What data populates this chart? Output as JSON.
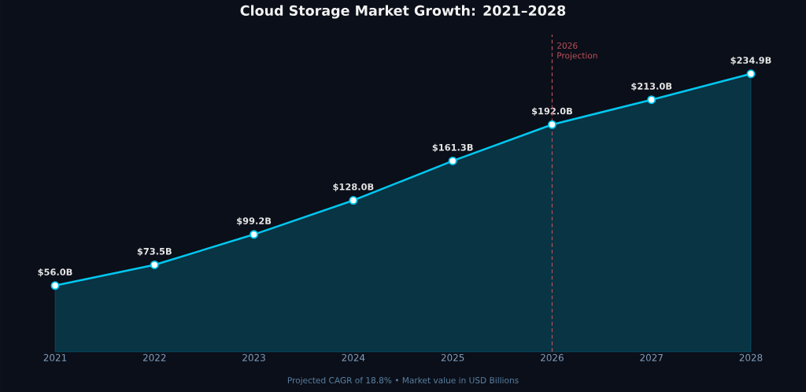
{
  "chart_data": {
    "type": "area",
    "title": "Cloud Storage Market Growth: 2021–2028",
    "x": [
      2021,
      2022,
      2023,
      2024,
      2025,
      2026,
      2027,
      2028
    ],
    "series": [
      {
        "color": "#00c8f0",
        "values": [
          56.0,
          73.5,
          99.2,
          128.0,
          161.3,
          192.0,
          213.0,
          234.9
        ],
        "value_labels": [
          "$56.0B",
          "$73.5B",
          "$99.2B",
          "$128.0B",
          "$161.3B",
          "$192.0B",
          "$213.0B",
          "$234.9B"
        ]
      }
    ],
    "xlim": [
      2021,
      2028
    ],
    "xticks": [
      2021,
      2022,
      2023,
      2024,
      2025,
      2026,
      2027,
      2028
    ],
    "ylim": [
      0,
      268
    ],
    "tick_labels": "x",
    "marker": "circle",
    "line_style": "solid",
    "ref_lines": [
      {
        "axis": "x",
        "value": 2026,
        "label": "2026 Projection",
        "color": "#c0505a",
        "line_style": "dashed"
      }
    ],
    "annotations": [
      "Projected CAGR of 18.8% • Market value in USD Billions"
    ]
  }
}
